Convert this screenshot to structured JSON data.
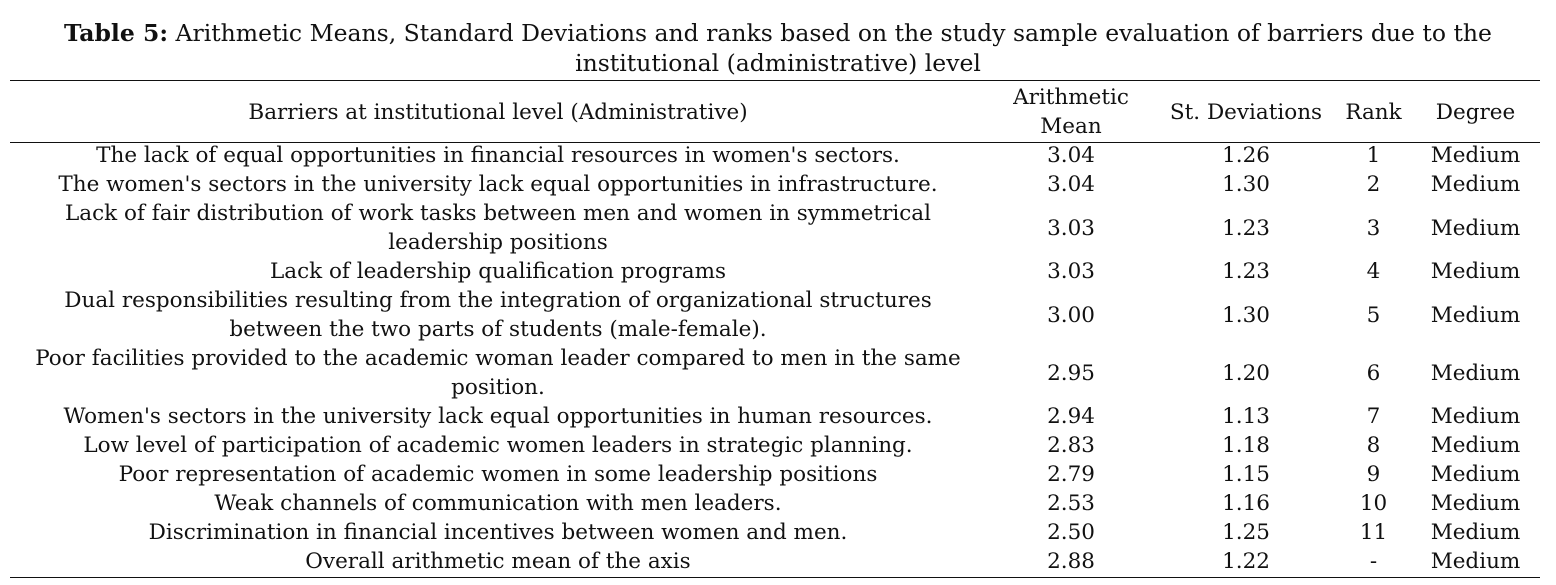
{
  "caption": {
    "label": "Table 5:",
    "text": "Arithmetic Means, Standard Deviations and ranks based on the study sample evaluation of barriers due to the institutional (administrative) level"
  },
  "table": {
    "headers": {
      "barrier": "Barriers at institutional level (Administrative)",
      "mean": "Arithmetic Mean",
      "sd": "St. Deviations",
      "rank": "Rank",
      "degree": "Degree"
    },
    "rows": [
      {
        "barrier": "The lack of equal opportunities in financial resources in women's sectors.",
        "mean": "3.04",
        "sd": "1.26",
        "rank": "1",
        "degree": "Medium"
      },
      {
        "barrier": "The women's sectors in the university lack equal opportunities in infrastructure.",
        "mean": "3.04",
        "sd": "1.30",
        "rank": "2",
        "degree": "Medium"
      },
      {
        "barrier": "Lack of fair distribution of work tasks between men and women in symmetrical leadership positions",
        "mean": "3.03",
        "sd": "1.23",
        "rank": "3",
        "degree": "Medium"
      },
      {
        "barrier": "Lack of leadership qualification programs",
        "mean": "3.03",
        "sd": "1.23",
        "rank": "4",
        "degree": "Medium"
      },
      {
        "barrier": "Dual responsibilities resulting from the integration of organizational structures between the two parts of students (male-female).",
        "mean": "3.00",
        "sd": "1.30",
        "rank": "5",
        "degree": "Medium"
      },
      {
        "barrier": "Poor facilities provided to the academic woman leader compared to men in the same position.",
        "mean": "2.95",
        "sd": "1.20",
        "rank": "6",
        "degree": "Medium"
      },
      {
        "barrier": "Women's sectors in the university lack equal opportunities in human resources.",
        "mean": "2.94",
        "sd": "1.13",
        "rank": "7",
        "degree": "Medium"
      },
      {
        "barrier": "Low level of participation of academic women leaders in strategic planning.",
        "mean": "2.83",
        "sd": "1.18",
        "rank": "8",
        "degree": "Medium"
      },
      {
        "barrier": "Poor representation of academic women in some leadership positions",
        "mean": "2.79",
        "sd": "1.15",
        "rank": "9",
        "degree": "Medium"
      },
      {
        "barrier": "Weak channels of communication with men leaders.",
        "mean": "2.53",
        "sd": "1.16",
        "rank": "10",
        "degree": "Medium"
      },
      {
        "barrier": "Discrimination in financial incentives between women and men.",
        "mean": "2.50",
        "sd": "1.25",
        "rank": "11",
        "degree": "Medium"
      },
      {
        "barrier": "Overall arithmetic mean of the axis",
        "mean": "2.88",
        "sd": "1.22",
        "rank": "-",
        "degree": "Medium"
      }
    ]
  }
}
